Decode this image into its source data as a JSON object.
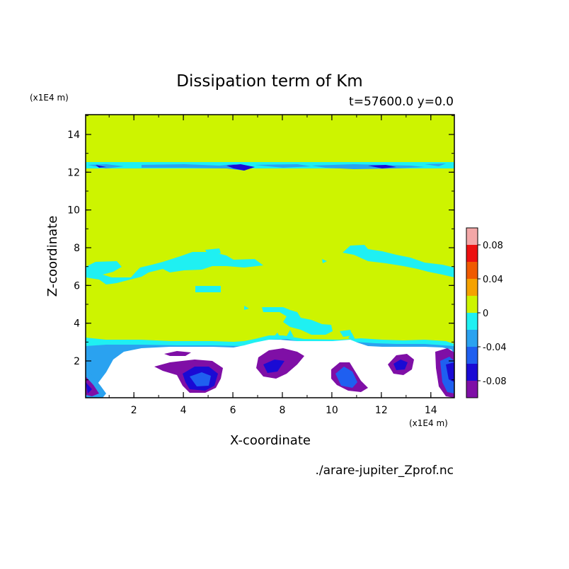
{
  "chart_data": {
    "type": "heatmap",
    "title": "Dissipation term of Km",
    "subtitle": "t=57600.0 y=0.0",
    "xlabel": "X-coordinate",
    "ylabel": "Z-coordinate",
    "x_unit": "(x1E4 m)",
    "y_unit": "(x1E4 m)",
    "xlim": [
      0.05,
      14.95
    ],
    "ylim": [
      0.05,
      15.05
    ],
    "x_ticks": [
      "2",
      "4",
      "6",
      "8",
      "10",
      "12",
      "14"
    ],
    "y_ticks": [
      "2",
      "4",
      "6",
      "8",
      "10",
      "12",
      "14"
    ],
    "source_file": "./arare-jupiter_Zprof.nc",
    "colorbar": {
      "levels": [
        -0.1,
        -0.08,
        -0.06,
        -0.04,
        -0.02,
        0,
        0.02,
        0.04,
        0.06,
        0.08,
        0.1
      ],
      "colors": [
        "#7f0fa6",
        "#1a0ad4",
        "#1f5ff0",
        "#2aa2f0",
        "#1ff0f2",
        "#cdf400",
        "#f5a200",
        "#f05a00",
        "#ec1010",
        "#f3a7a7"
      ],
      "tick_labels": [
        "0.08",
        "0.04",
        "0",
        "-0.04",
        "-0.08"
      ],
      "tick_values": [
        0.08,
        0.04,
        0,
        -0.04,
        -0.08
      ]
    },
    "background_value": 0.0,
    "notes": "Field near zero above z~3 with a thin negative band near z~12.2 and scattered negative patches near z~5-8; strongly negative/undefined region below z~3."
  }
}
